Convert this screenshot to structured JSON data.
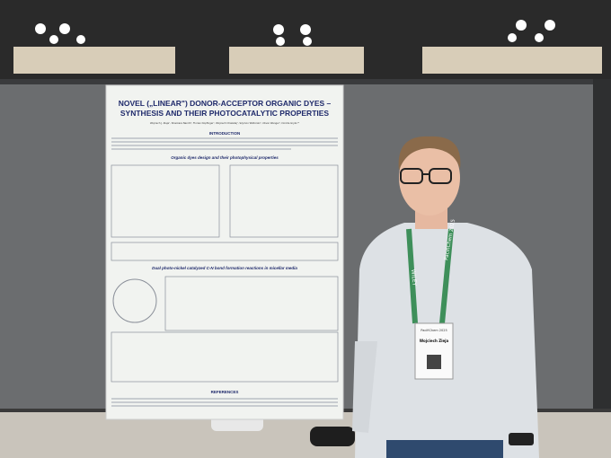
{
  "poster": {
    "title_line1": "NOVEL („LINEAR\") DONOR-ACCEPTOR ORGANIC DYES –",
    "title_line2": "SYNTHESIS AND THEIR PHOTOCATALYTIC PROPERTIES",
    "authors": "Wojciech J. Zieja¹, Shankara Narohl², Florian Dopfinger², Wojciech Chaładaj¹, Szymon Wiktorski¹, Oliver Wenger², Dorota Gryko¹*",
    "sections": [
      "INTRODUCTION",
      "Organic dyes design and their photophysical properties",
      "Dual photo-nickel catalyzed C-N bond formation reactions in micellar media",
      "REFERENCES"
    ]
  },
  "badge": {
    "event": "PacifiChem 2025",
    "name": "Wojciech Zieja",
    "lanyard": "WILEY"
  }
}
